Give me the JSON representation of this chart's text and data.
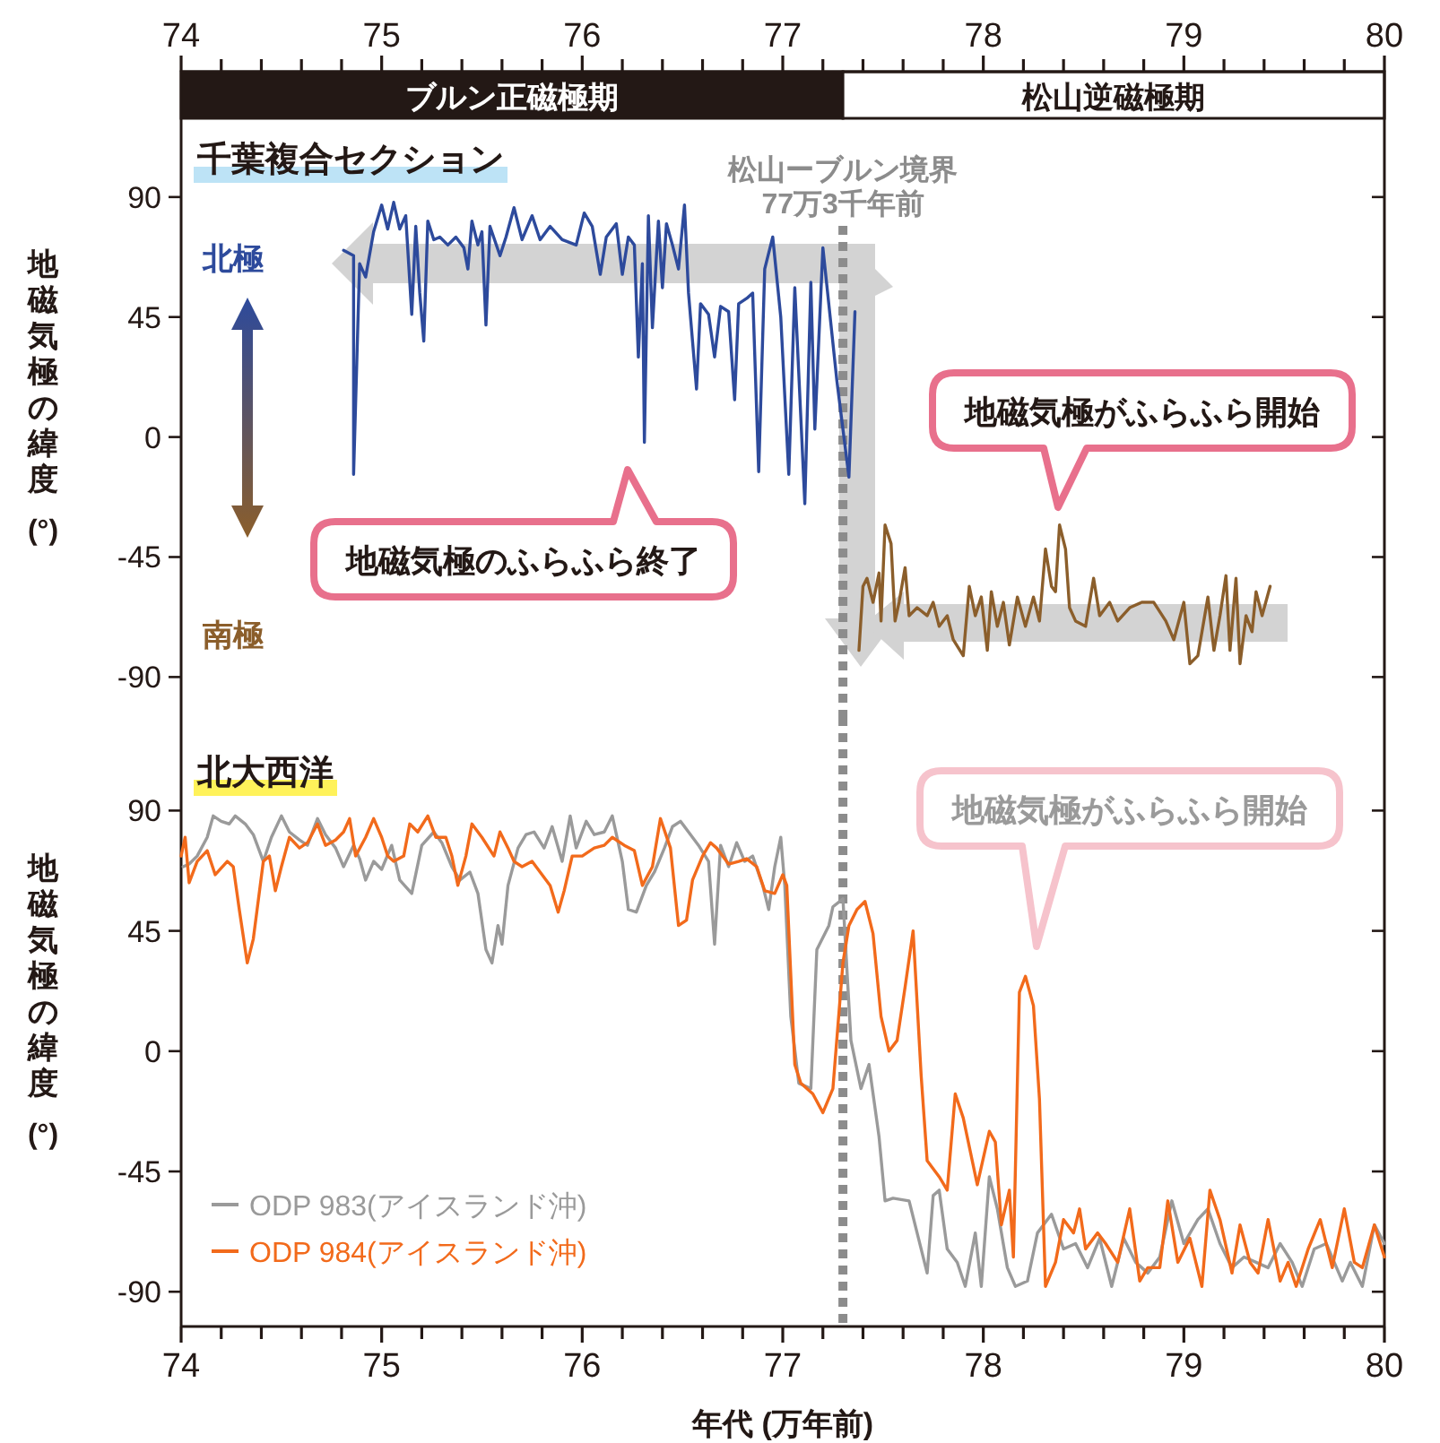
{
  "chart_data": [
    {
      "type": "line",
      "title": "千葉複合セクション",
      "ylabel": "地磁気極の緯度 (°)",
      "xlim": [
        74,
        80
      ],
      "xticks": [
        74,
        {
          "value": 74.2,
          "label": null
        },
        {
          "value": 74.4,
          "label": null
        },
        {
          "value": 74.6,
          "label": null
        },
        {
          "value": 74.8,
          "label": null
        },
        75,
        {
          "value": 75.2,
          "label": null
        },
        {
          "value": 75.4,
          "label": null
        },
        {
          "value": 75.6,
          "label": null
        },
        {
          "value": 75.8,
          "label": null
        },
        76,
        {
          "value": 76.2,
          "label": null
        },
        {
          "value": 76.4,
          "label": null
        },
        {
          "value": 76.6,
          "label": null
        },
        {
          "value": 76.8,
          "label": null
        },
        77,
        {
          "value": 77.2,
          "label": null
        },
        {
          "value": 77.4,
          "label": null
        },
        {
          "value": 77.6,
          "label": null
        },
        {
          "value": 77.8,
          "label": null
        },
        78,
        {
          "value": 78.2,
          "label": null
        },
        {
          "value": 78.4,
          "label": null
        },
        {
          "value": 78.6,
          "label": null
        },
        {
          "value": 78.8,
          "label": null
        },
        79,
        {
          "value": 79.2,
          "label": null
        },
        {
          "value": 79.4,
          "label": null
        },
        {
          "value": 79.6,
          "label": null
        },
        {
          "value": 79.8,
          "label": null
        },
        80
      ],
      "ylim": [
        -105,
        137
      ],
      "yticks": [
        -90,
        -45,
        0,
        45,
        90
      ],
      "grid": false,
      "legend": false,
      "line_style": "solid",
      "bands": [
        {
          "axis": "x",
          "from": 74,
          "to": 77.3,
          "label": "ブルン正磁極期",
          "color": "#231815"
        },
        {
          "axis": "x",
          "from": 77.3,
          "to": 80,
          "label": "松山逆磁極期",
          "color": "#ffffff"
        }
      ],
      "ref_lines": [
        {
          "axis": "x",
          "value": 77.3,
          "label": "松山ーブルン境界\n77万3千年前",
          "color": "#8c8c8c",
          "line_style": "dotted"
        }
      ],
      "annotations": [
        "北極",
        "南極",
        "地磁気極のふらふら終了",
        "地磁気極がふらふら開始"
      ],
      "series": [
        {
          "color": "#2d4a9c",
          "x": [
            74.81,
            74.86,
            74.86,
            74.89,
            74.92,
            74.96,
            75.0,
            75.03,
            75.06,
            75.09,
            75.12,
            75.15,
            75.17,
            75.19,
            75.21,
            75.23,
            75.26,
            75.29,
            75.33,
            75.37,
            75.41,
            75.43,
            75.45,
            75.48,
            75.5,
            75.52,
            75.54,
            75.59,
            75.62,
            75.66,
            75.7,
            75.75,
            75.79,
            75.84,
            75.9,
            75.97,
            76.01,
            76.05,
            76.09,
            76.12,
            76.17,
            76.2,
            76.23,
            76.26,
            76.28,
            76.3,
            76.31,
            76.33,
            76.35,
            76.38,
            76.4,
            76.42,
            76.45,
            76.48,
            76.51,
            76.53,
            76.57,
            76.59,
            76.63,
            76.66,
            76.69,
            76.73,
            76.76,
            76.78,
            76.82,
            76.85,
            76.88,
            76.91,
            76.95,
            76.99,
            77.03,
            77.06,
            77.11,
            77.14,
            77.16,
            77.2,
            77.27,
            77.33,
            77.36
          ],
          "values": [
            70,
            68,
            -14,
            65,
            60,
            77,
            87,
            78,
            88,
            78,
            83,
            46,
            79,
            54,
            36,
            81,
            74,
            75,
            72,
            75,
            71,
            63,
            81,
            72,
            77,
            42,
            79,
            68,
            75,
            86,
            74,
            83,
            74,
            79,
            74,
            72,
            84,
            79,
            61,
            75,
            80,
            61,
            75,
            72,
            30,
            65,
            -2,
            83,
            41,
            81,
            56,
            80,
            72,
            63,
            87,
            54,
            18,
            50,
            46,
            30,
            49,
            47,
            14,
            50,
            52,
            54,
            -13,
            63,
            75,
            45,
            -14,
            56,
            -25,
            58,
            3,
            71,
            21,
            -15,
            47
          ]
        },
        {
          "color": "#8b5e2b",
          "x": [
            77.38,
            77.4,
            77.42,
            77.45,
            77.48,
            77.49,
            77.51,
            77.54,
            77.56,
            77.58,
            77.61,
            77.63,
            77.67,
            77.72,
            77.75,
            77.78,
            77.82,
            77.85,
            77.9,
            77.93,
            77.96,
            77.99,
            78.02,
            78.04,
            78.07,
            78.1,
            78.13,
            78.17,
            78.21,
            78.25,
            78.28,
            78.31,
            78.34,
            78.36,
            78.38,
            78.41,
            78.43,
            78.46,
            78.51,
            78.55,
            78.58,
            78.63,
            78.67,
            78.73,
            78.79,
            78.85,
            78.91,
            78.95,
            79.0,
            79.03,
            79.07,
            79.12,
            79.15,
            79.18,
            79.21,
            79.23,
            79.26,
            79.28,
            79.31,
            79.34,
            79.36,
            79.39,
            79.43
          ],
          "values": [
            -80,
            -56,
            -53,
            -62,
            -51,
            -69,
            -33,
            -40,
            -69,
            -62,
            -49,
            -67,
            -64,
            -67,
            -62,
            -71,
            -67,
            -76,
            -82,
            -56,
            -67,
            -60,
            -80,
            -58,
            -71,
            -62,
            -78,
            -60,
            -71,
            -60,
            -69,
            -42,
            -56,
            -58,
            -33,
            -42,
            -64,
            -69,
            -71,
            -53,
            -67,
            -62,
            -69,
            -64,
            -62,
            -62,
            -69,
            -76,
            -62,
            -85,
            -82,
            -60,
            -80,
            -67,
            -52,
            -80,
            -53,
            -85,
            -67,
            -73,
            -58,
            -67,
            -56
          ]
        }
      ]
    },
    {
      "type": "line",
      "title": "北大西洋",
      "ylabel": "地磁気極の緯度 (°)",
      "xlabel": "年代 (万年前)",
      "xlim": [
        74,
        80
      ],
      "xticks": [
        74,
        {
          "value": 74.2,
          "label": null
        },
        {
          "value": 74.4,
          "label": null
        },
        {
          "value": 74.6,
          "label": null
        },
        {
          "value": 74.8,
          "label": null
        },
        75,
        {
          "value": 75.2,
          "label": null
        },
        {
          "value": 75.4,
          "label": null
        },
        {
          "value": 75.6,
          "label": null
        },
        {
          "value": 75.8,
          "label": null
        },
        76,
        {
          "value": 76.2,
          "label": null
        },
        {
          "value": 76.4,
          "label": null
        },
        {
          "value": 76.6,
          "label": null
        },
        {
          "value": 76.8,
          "label": null
        },
        77,
        {
          "value": 77.2,
          "label": null
        },
        {
          "value": 77.4,
          "label": null
        },
        {
          "value": 77.6,
          "label": null
        },
        {
          "value": 77.8,
          "label": null
        },
        78,
        {
          "value": 78.2,
          "label": null
        },
        {
          "value": 78.4,
          "label": null
        },
        {
          "value": 78.6,
          "label": null
        },
        {
          "value": 78.8,
          "label": null
        },
        79,
        {
          "value": 79.2,
          "label": null
        },
        {
          "value": 79.4,
          "label": null
        },
        {
          "value": 79.6,
          "label": null
        },
        {
          "value": 79.8,
          "label": null
        },
        80
      ],
      "ylim": [
        -103,
        125
      ],
      "yticks": [
        -90,
        -45,
        0,
        45,
        90
      ],
      "grid": false,
      "legend": "bottom left",
      "line_style": "solid",
      "ref_lines": [
        {
          "axis": "x",
          "value": 77.3,
          "color": "#8c8c8c",
          "line_style": "dotted"
        }
      ],
      "annotations": [
        "地磁気極がふらふら開始"
      ],
      "series": [
        {
          "name": "ODP 983(アイスランド沖)",
          "color": "#9a9a9a",
          "x": [
            74.01,
            74.04,
            74.08,
            74.13,
            74.16,
            74.2,
            74.24,
            74.27,
            74.32,
            74.36,
            74.41,
            74.45,
            74.5,
            74.54,
            74.59,
            74.63,
            74.68,
            74.72,
            74.77,
            74.81,
            74.86,
            74.89,
            74.92,
            74.96,
            75.0,
            75.05,
            75.09,
            75.15,
            75.2,
            75.26,
            75.3,
            75.35,
            75.39,
            75.44,
            75.48,
            75.52,
            75.55,
            75.58,
            75.6,
            75.63,
            75.68,
            75.72,
            75.76,
            75.81,
            75.85,
            75.9,
            75.94,
            75.97,
            76.02,
            76.06,
            76.11,
            76.15,
            76.2,
            76.23,
            76.27,
            76.32,
            76.36,
            76.41,
            76.45,
            76.49,
            76.54,
            76.58,
            76.63,
            76.66,
            76.69,
            76.73,
            76.77,
            76.81,
            76.85,
            76.9,
            76.93,
            76.96,
            76.99,
            77.01,
            77.04,
            77.08,
            77.14,
            77.17,
            77.23,
            77.25,
            77.3,
            77.34,
            77.39,
            77.43,
            77.48,
            77.51,
            77.55,
            77.63,
            77.67,
            77.72,
            77.75,
            77.78,
            77.82,
            77.87,
            77.91,
            77.96,
            77.99,
            78.03,
            78.07,
            78.12,
            78.16,
            78.22,
            78.27,
            78.34,
            78.4,
            78.46,
            78.52,
            78.58,
            78.64,
            78.7,
            78.76,
            78.82,
            78.88,
            78.94,
            79.0,
            79.07,
            79.12,
            79.18,
            79.24,
            79.3,
            79.36,
            79.42,
            79.48,
            79.54,
            79.59,
            79.65,
            79.71,
            79.79,
            79.83,
            79.89,
            79.95,
            80.0
          ],
          "values": [
            69,
            70,
            73,
            80,
            88,
            86,
            85,
            88,
            85,
            81,
            71,
            80,
            88,
            82,
            79,
            77,
            87,
            81,
            76,
            69,
            77,
            72,
            64,
            71,
            68,
            77,
            64,
            59,
            77,
            82,
            78,
            69,
            64,
            67,
            59,
            38,
            33,
            47,
            40,
            62,
            76,
            81,
            82,
            76,
            84,
            71,
            88,
            76,
            86,
            81,
            82,
            88,
            71,
            53,
            52,
            62,
            67,
            76,
            84,
            86,
            81,
            77,
            71,
            40,
            77,
            69,
            78,
            71,
            73,
            62,
            53,
            69,
            80,
            62,
            13,
            -12,
            -14,
            38,
            47,
            54,
            57,
            4,
            -14,
            -5,
            -32,
            -56,
            -55,
            -56,
            -68,
            -83,
            -54,
            -52,
            -74,
            -79,
            -88,
            -68,
            -88,
            -47,
            -59,
            -81,
            -88,
            -86,
            -68,
            -61,
            -74,
            -72,
            -81,
            -70,
            -88,
            -70,
            -79,
            -83,
            -77,
            -56,
            -72,
            -63,
            -59,
            -72,
            -81,
            -77,
            -79,
            -81,
            -72,
            -79,
            -88,
            -74,
            -72,
            -86,
            -79,
            -88,
            -65,
            -72
          ]
        },
        {
          "name": "ODP 984(アイスランド沖)",
          "color": "#f26a1b",
          "x": [
            74.0,
            74.02,
            74.04,
            74.08,
            74.13,
            74.17,
            74.23,
            74.26,
            74.29,
            74.33,
            74.36,
            74.41,
            74.44,
            74.47,
            74.5,
            74.54,
            74.59,
            74.63,
            74.68,
            74.72,
            74.77,
            74.81,
            74.84,
            74.87,
            74.92,
            74.96,
            75.0,
            75.03,
            75.06,
            75.11,
            75.14,
            75.18,
            75.23,
            75.27,
            75.32,
            75.35,
            75.38,
            75.42,
            75.45,
            75.5,
            75.56,
            75.59,
            75.63,
            75.66,
            75.7,
            75.75,
            75.79,
            75.84,
            75.88,
            75.91,
            75.95,
            76.0,
            76.06,
            76.11,
            76.15,
            76.21,
            76.26,
            76.3,
            76.35,
            76.39,
            76.44,
            76.48,
            76.52,
            76.55,
            76.6,
            76.64,
            76.67,
            76.73,
            76.78,
            76.82,
            76.87,
            76.91,
            76.96,
            77.0,
            77.02,
            77.06,
            77.09,
            77.15,
            77.2,
            77.25,
            77.3,
            77.33,
            77.37,
            77.41,
            77.45,
            77.49,
            77.53,
            77.57,
            77.61,
            77.65,
            77.69,
            77.72,
            77.78,
            77.82,
            77.86,
            77.9,
            77.97,
            78.03,
            78.06,
            78.09,
            78.13,
            78.15,
            78.18,
            78.21,
            78.25,
            78.28,
            78.31,
            78.36,
            78.4,
            78.45,
            78.48,
            78.51,
            78.57,
            78.61,
            78.67,
            78.73,
            78.78,
            78.82,
            78.88,
            78.92,
            78.97,
            79.03,
            79.09,
            79.13,
            79.18,
            79.24,
            79.28,
            79.33,
            79.37,
            79.42,
            79.48,
            79.52,
            79.56,
            79.62,
            79.68,
            79.74,
            79.8,
            79.85,
            79.89,
            79.95,
            80.0
          ],
          "values": [
            73,
            80,
            63,
            71,
            75,
            66,
            71,
            69,
            53,
            33,
            42,
            71,
            73,
            60,
            69,
            80,
            76,
            78,
            85,
            77,
            79,
            82,
            87,
            73,
            80,
            87,
            80,
            73,
            71,
            73,
            85,
            82,
            88,
            80,
            80,
            73,
            62,
            73,
            85,
            80,
            73,
            82,
            76,
            71,
            69,
            71,
            67,
            62,
            52,
            60,
            73,
            73,
            76,
            77,
            80,
            77,
            75,
            62,
            69,
            87,
            76,
            47,
            49,
            64,
            73,
            78,
            76,
            70,
            71,
            72,
            69,
            60,
            59,
            66,
            62,
            -5,
            -12,
            -16,
            -23,
            -14,
            33,
            47,
            53,
            56,
            44,
            13,
            0,
            4,
            24,
            45,
            -9,
            -41,
            -47,
            -52,
            -16,
            -25,
            -50,
            -30,
            -34,
            -65,
            -52,
            -77,
            22,
            28,
            17,
            -18,
            -88,
            -79,
            -63,
            -68,
            -59,
            -74,
            -68,
            -72,
            -79,
            -59,
            -86,
            -81,
            -81,
            -56,
            -79,
            -70,
            -88,
            -52,
            -63,
            -83,
            -65,
            -79,
            -83,
            -63,
            -86,
            -79,
            -88,
            -74,
            -63,
            -81,
            -59,
            -79,
            -81,
            -65,
            -77
          ]
        }
      ]
    }
  ]
}
